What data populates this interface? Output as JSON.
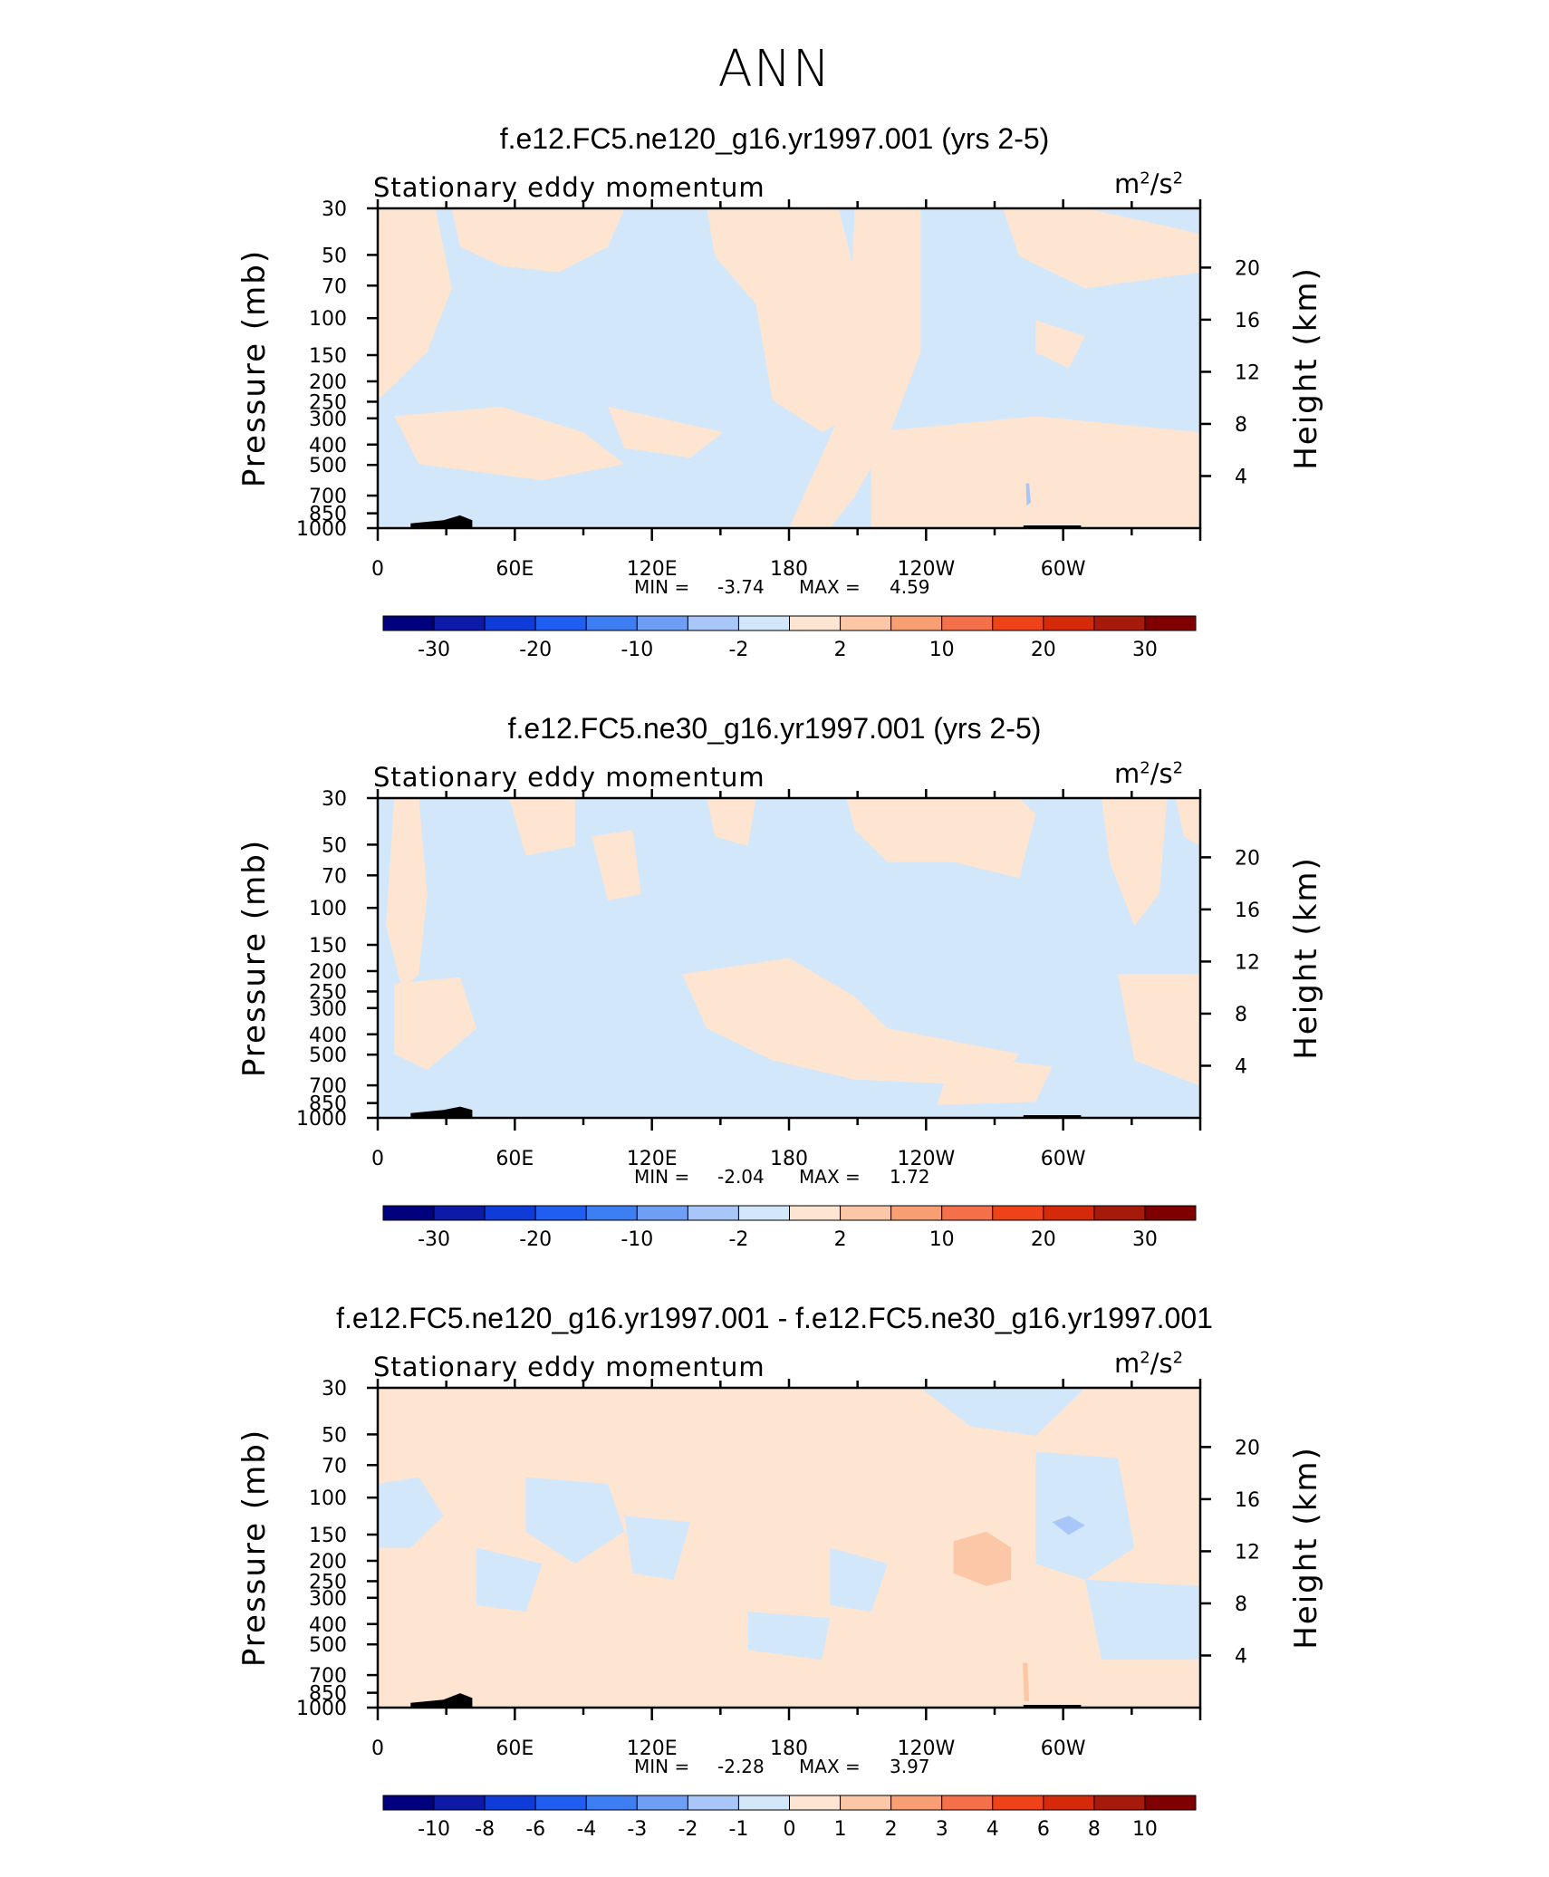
{
  "page_title": "ANN",
  "chart_data": [
    {
      "type": "heatmap",
      "case_title": "f.e12.FC5.ne120_g16.yr1997.001 (yrs 2-5)",
      "variable": "Stationary eddy momentum",
      "units_base": "m",
      "units_mid": "/s",
      "units_exp": "2",
      "xlabel": "",
      "ylabel_left": "Pressure (mb)",
      "ylabel_right": "Height (km)",
      "x_ticks": [
        "0",
        "60E",
        "120E",
        "180",
        "120W",
        "60W"
      ],
      "y_ticks_pressure": [
        "30",
        "50",
        "70",
        "100",
        "150",
        "200",
        "250",
        "300",
        "400",
        "500",
        "700",
        "850",
        "1000"
      ],
      "y_ticks_height": [
        "20",
        "16",
        "12",
        "8",
        "4"
      ],
      "min_label": "MIN =",
      "min_value": "-3.74",
      "max_label": "MAX =",
      "max_value": "4.59",
      "colorbar_levels": [
        "-30",
        "-20",
        "-10",
        "-2",
        "2",
        "10",
        "20",
        "30"
      ],
      "colorbar_colors": [
        "#00007f",
        "#0d1aa8",
        "#0f3bd9",
        "#1f5ef0",
        "#3d7ef2",
        "#6f9ff5",
        "#a8c6f7",
        "#d3e7fb",
        "#fde5d2",
        "#fbc7a6",
        "#f79e72",
        "#f4704a",
        "#ee4219",
        "#d42a0a",
        "#a51a0a",
        "#7f0000"
      ],
      "field_colors": {
        "negative": "#d3e7fb",
        "positive": "#fde5d2",
        "strong_negative": "#a8c6f7",
        "strong_positive": "#fbc7a6"
      }
    },
    {
      "type": "heatmap",
      "case_title": "f.e12.FC5.ne30_g16.yr1997.001 (yrs 2-5)",
      "variable": "Stationary eddy momentum",
      "units_base": "m",
      "units_mid": "/s",
      "units_exp": "2",
      "xlabel": "",
      "ylabel_left": "Pressure (mb)",
      "ylabel_right": "Height (km)",
      "x_ticks": [
        "0",
        "60E",
        "120E",
        "180",
        "120W",
        "60W"
      ],
      "y_ticks_pressure": [
        "30",
        "50",
        "70",
        "100",
        "150",
        "200",
        "250",
        "300",
        "400",
        "500",
        "700",
        "850",
        "1000"
      ],
      "y_ticks_height": [
        "20",
        "16",
        "12",
        "8",
        "4"
      ],
      "min_label": "MIN =",
      "min_value": "-2.04",
      "max_label": "MAX =",
      "max_value": "1.72",
      "colorbar_levels": [
        "-30",
        "-20",
        "-10",
        "-2",
        "2",
        "10",
        "20",
        "30"
      ],
      "colorbar_colors": [
        "#00007f",
        "#0d1aa8",
        "#0f3bd9",
        "#1f5ef0",
        "#3d7ef2",
        "#6f9ff5",
        "#a8c6f7",
        "#d3e7fb",
        "#fde5d2",
        "#fbc7a6",
        "#f79e72",
        "#f4704a",
        "#ee4219",
        "#d42a0a",
        "#a51a0a",
        "#7f0000"
      ],
      "field_colors": {
        "negative": "#d3e7fb",
        "positive": "#fde5d2",
        "strong_negative": "#a8c6f7",
        "strong_positive": "#fbc7a6"
      }
    },
    {
      "type": "heatmap",
      "case_title": "f.e12.FC5.ne120_g16.yr1997.001 - f.e12.FC5.ne30_g16.yr1997.001",
      "variable": "Stationary eddy momentum",
      "units_base": "m",
      "units_mid": "/s",
      "units_exp": "2",
      "xlabel": "",
      "ylabel_left": "Pressure (mb)",
      "ylabel_right": "Height (km)",
      "x_ticks": [
        "0",
        "60E",
        "120E",
        "180",
        "120W",
        "60W"
      ],
      "y_ticks_pressure": [
        "30",
        "50",
        "70",
        "100",
        "150",
        "200",
        "250",
        "300",
        "400",
        "500",
        "700",
        "850",
        "1000"
      ],
      "y_ticks_height": [
        "20",
        "16",
        "12",
        "8",
        "4"
      ],
      "min_label": "MIN =",
      "min_value": "-2.28",
      "max_label": "MAX =",
      "max_value": "3.97",
      "colorbar_levels": [
        "-10",
        "-8",
        "-6",
        "-4",
        "-3",
        "-2",
        "-1",
        "0",
        "1",
        "2",
        "3",
        "4",
        "6",
        "8",
        "10"
      ],
      "colorbar_colors": [
        "#00007f",
        "#0d1aa8",
        "#0f3bd9",
        "#1f5ef0",
        "#3d7ef2",
        "#6f9ff5",
        "#a8c6f7",
        "#d3e7fb",
        "#fde5d2",
        "#fbc7a6",
        "#f79e72",
        "#f4704a",
        "#ee4219",
        "#d42a0a",
        "#a51a0a",
        "#7f0000"
      ],
      "field_colors": {
        "negative": "#d3e7fb",
        "positive": "#fde5d2",
        "strong_negative": "#a8c6f7",
        "strong_positive": "#fbc7a6"
      }
    }
  ]
}
